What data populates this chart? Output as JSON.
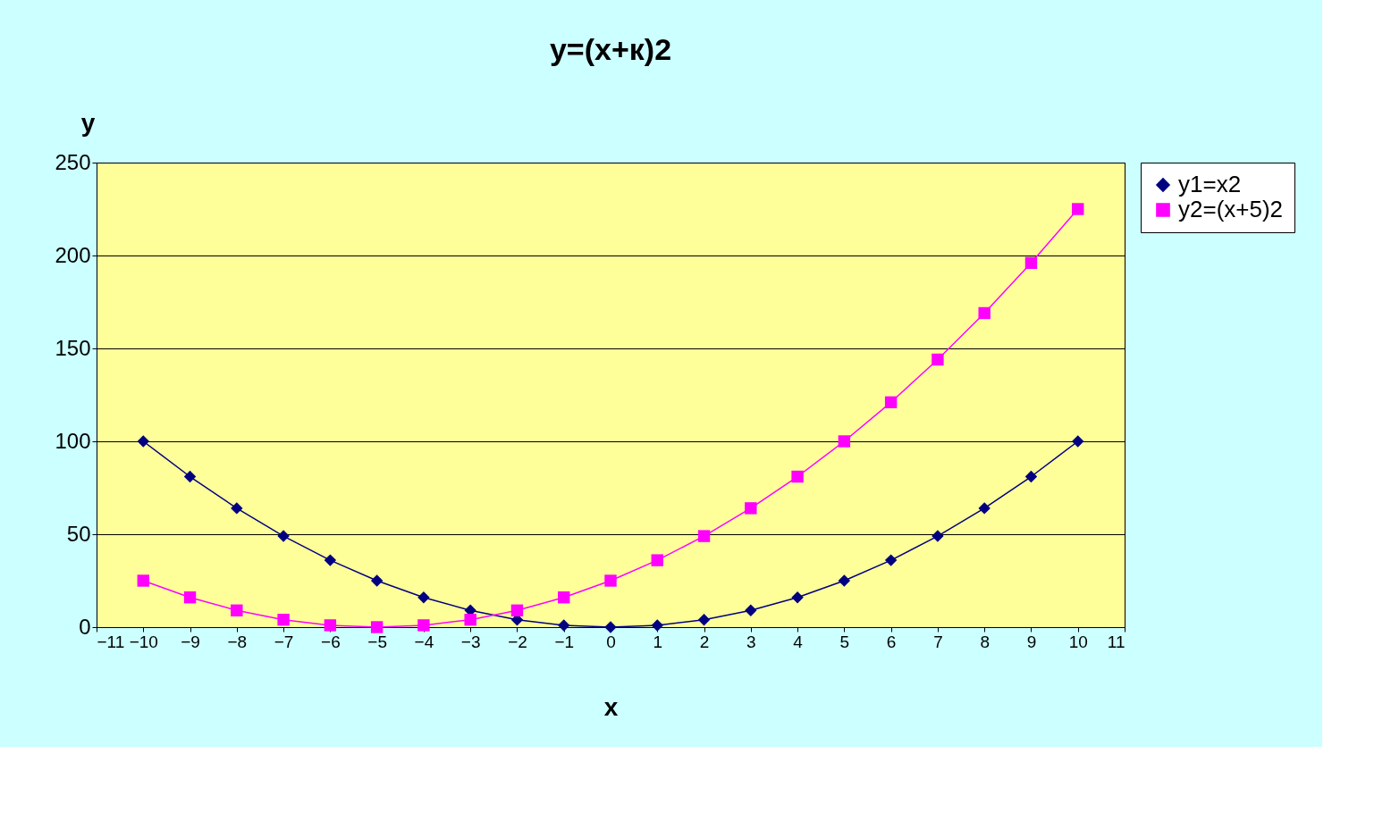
{
  "chart_data": {
    "type": "line",
    "title": "y=(x+к)2",
    "xlabel": "x",
    "ylabel": "y",
    "x": [
      -10,
      -9,
      -8,
      -7,
      -6,
      -5,
      -4,
      -3,
      -2,
      -1,
      0,
      1,
      2,
      3,
      4,
      5,
      6,
      7,
      8,
      9,
      10
    ],
    "series": [
      {
        "name": "y1=x2",
        "color": "#000080",
        "marker": "diamond",
        "values": [
          100,
          81,
          64,
          49,
          36,
          25,
          16,
          9,
          4,
          1,
          0,
          1,
          4,
          9,
          16,
          25,
          36,
          49,
          64,
          81,
          100
        ]
      },
      {
        "name": "y2=(x+5)2",
        "color": "#ff00ff",
        "marker": "square",
        "values": [
          25,
          16,
          9,
          4,
          1,
          0,
          1,
          4,
          9,
          16,
          25,
          36,
          49,
          64,
          81,
          100,
          121,
          144,
          169,
          196,
          225
        ]
      }
    ],
    "xlim": [
      -11,
      11
    ],
    "xticks": [
      -11,
      -10,
      -9,
      -8,
      -7,
      -6,
      -5,
      -4,
      -3,
      -2,
      -1,
      0,
      1,
      2,
      3,
      4,
      5,
      6,
      7,
      8,
      9,
      10,
      11
    ],
    "ylim": [
      0,
      250
    ],
    "yticks": [
      0,
      50,
      100,
      150,
      200,
      250
    ],
    "grid": "y",
    "legend": "right",
    "line_style": "solid"
  }
}
